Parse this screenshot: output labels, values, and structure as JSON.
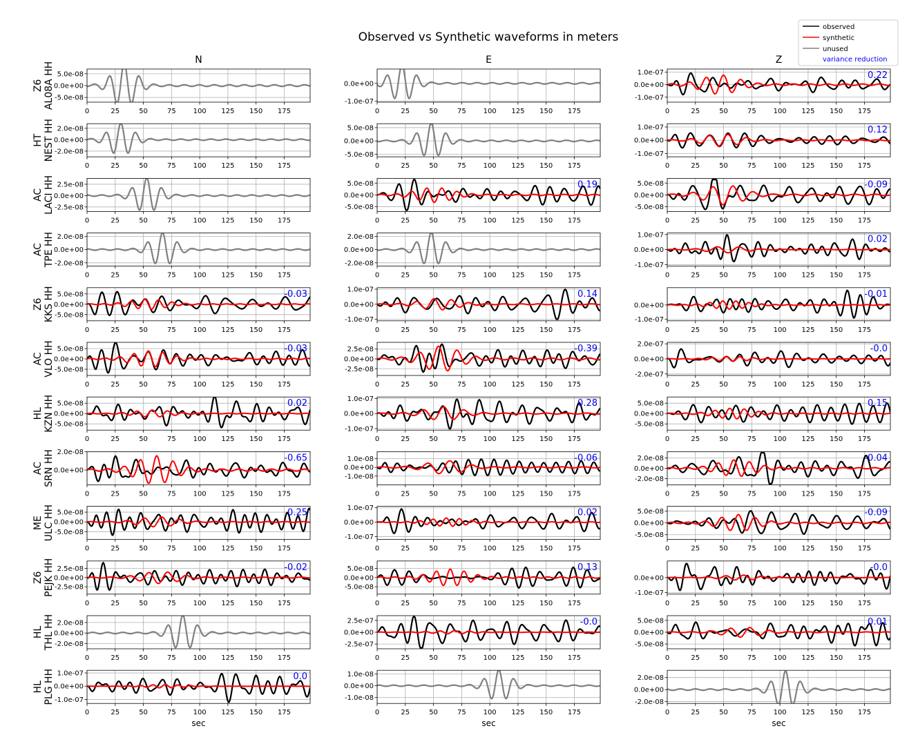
{
  "title": "Observed vs Synthetic waveforms in meters",
  "columns": [
    "N",
    "E",
    "Z"
  ],
  "legend": {
    "observed": "observed",
    "synthetic": "synthetic",
    "unused": "unused",
    "variance_reduction": "variance reduction"
  },
  "colors": {
    "observed": "#000000",
    "synthetic": "#ff0000",
    "unused": "#808080",
    "variance_reduction": "#0000ee",
    "grid": "#b0b0b0"
  },
  "xlabel": "sec",
  "chart_data": {
    "type": "line",
    "xlim": [
      0,
      198
    ],
    "x_ticks": [
      "0",
      "25",
      "50",
      "75",
      "100",
      "125",
      "150",
      "175"
    ],
    "rows": [
      {
        "label": "Z6\nAL08A HH",
        "channels": [
          {
            "used": false,
            "vr": null,
            "yticks": [
              "5.0e-08",
              "0.0e+00",
              "-5.0e-08"
            ],
            "ylim": [
              -7e-08,
              7e-08
            ],
            "amp": 9e-08,
            "peak": 33,
            "syn": 0
          },
          {
            "used": false,
            "vr": null,
            "yticks": [
              "0.0e+00",
              "-1.0e-07"
            ],
            "ylim": [
              -1.05e-07,
              8e-08
            ],
            "amp": 1e-07,
            "peak": 22,
            "syn": 0
          },
          {
            "used": true,
            "vr": "0.22",
            "yticks": [
              "1.0e-07",
              "0.0e+00",
              "-1.0e-07"
            ],
            "ylim": [
              -1.4e-07,
              1.25e-07
            ],
            "amp": 1.3e-07,
            "peak": 20,
            "syn": 0.55
          }
        ]
      },
      {
        "label": "HT\nNEST HH",
        "channels": [
          {
            "used": false,
            "vr": null,
            "yticks": [
              "2.0e-08",
              "0.0e+00",
              "-2.0e-08"
            ],
            "ylim": [
              -3e-08,
              2.8e-08
            ],
            "amp": 2.8e-08,
            "peak": 30,
            "syn": 0
          },
          {
            "used": false,
            "vr": null,
            "yticks": [
              "5.0e-08",
              "0.0e+00",
              "-5.0e-08"
            ],
            "ylim": [
              -6e-08,
              6.5e-08
            ],
            "amp": 6.5e-08,
            "peak": 48,
            "syn": 0
          },
          {
            "used": true,
            "vr": "0.12",
            "yticks": [
              "1.0e-07",
              "0.0e+00",
              "-1.0e-07"
            ],
            "ylim": [
              -1.25e-07,
              1.25e-07
            ],
            "amp": 1.2e-07,
            "peak": 22,
            "syn": 0.35
          }
        ]
      },
      {
        "label": "AC\nLACI HH",
        "channels": [
          {
            "used": false,
            "vr": null,
            "yticks": [
              "2.5e-08",
              "0.0e+00",
              "-2.5e-08"
            ],
            "ylim": [
              -3.5e-08,
              3.8e-08
            ],
            "amp": 3.8e-08,
            "peak": 53,
            "syn": 0
          },
          {
            "used": true,
            "vr": "0.19",
            "yticks": [
              "5.0e-08",
              "0.0e+00",
              "-5.0e-08"
            ],
            "ylim": [
              -7e-08,
              7e-08
            ],
            "amp": 6.5e-08,
            "peak": 45,
            "syn": 0.45
          },
          {
            "used": true,
            "vr": "-0.09",
            "yticks": [
              "5.0e-08",
              "0.0e+00",
              "-5.0e-08"
            ],
            "ylim": [
              -7e-08,
              7e-08
            ],
            "amp": 6.5e-08,
            "peak": 48,
            "syn": 0.6
          }
        ]
      },
      {
        "label": "AC\nTPE HH",
        "channels": [
          {
            "used": false,
            "vr": null,
            "yticks": [
              "2.0e-08",
              "0.0e+00",
              "-2.0e-08"
            ],
            "ylim": [
              -2.5e-08,
              2.5e-08
            ],
            "amp": 2.5e-08,
            "peak": 67,
            "syn": 0
          },
          {
            "used": false,
            "vr": null,
            "yticks": [
              "2.0e-08",
              "0.0e+00",
              "-2.0e-08"
            ],
            "ylim": [
              -2.5e-08,
              2.5e-08
            ],
            "amp": 2.5e-08,
            "peak": 48,
            "syn": 0
          },
          {
            "used": true,
            "vr": "0.02",
            "yticks": [
              "1.0e-07",
              "0.0e+00",
              "-1.0e-07"
            ],
            "ylim": [
              -1.1e-07,
              1.1e-07
            ],
            "amp": 1e-07,
            "peak": 40,
            "syn": 0.2
          }
        ]
      },
      {
        "label": "Z6\nKKS HH",
        "channels": [
          {
            "used": true,
            "vr": "-0.03",
            "yticks": [
              "5.0e-08",
              "0.0e+00",
              "-5.0e-08"
            ],
            "ylim": [
              -8e-08,
              8e-08
            ],
            "amp": 7.5e-08,
            "peak": 20,
            "syn": 0.3
          },
          {
            "used": true,
            "vr": "0.14",
            "yticks": [
              "1.0e-07",
              "0.0e+00",
              "-1.0e-07"
            ],
            "ylim": [
              -1.1e-07,
              1.1e-07
            ],
            "amp": 1e-07,
            "peak": 155,
            "syn": 0.35
          },
          {
            "used": true,
            "vr": "-0.01",
            "yticks": [
              "0.0e+00",
              "-1.0e-07"
            ],
            "ylim": [
              -1.1e-07,
              1.2e-07
            ],
            "amp": 1.1e-07,
            "peak": 175,
            "syn": 0.25
          }
        ]
      },
      {
        "label": "AC\nVLO HH",
        "channels": [
          {
            "used": true,
            "vr": "-0.03",
            "yticks": [
              "5.0e-08",
              "0.0e+00",
              "-5.0e-08"
            ],
            "ylim": [
              -8e-08,
              8e-08
            ],
            "amp": 8e-08,
            "peak": 22,
            "syn": 0.45
          },
          {
            "used": true,
            "vr": "-0.39",
            "yticks": [
              "2.5e-08",
              "0.0e+00",
              "-2.5e-08"
            ],
            "ylim": [
              -4.2e-08,
              4.2e-08
            ],
            "amp": 4e-08,
            "peak": 48,
            "syn": 0.75
          },
          {
            "used": true,
            "vr": "-0.0",
            "yticks": [
              "2.0e-07",
              "0.0e+00",
              "-2.0e-07"
            ],
            "ylim": [
              -2.2e-07,
              2.2e-07
            ],
            "amp": 2e-07,
            "peak": 18,
            "syn": 0.15
          }
        ]
      },
      {
        "label": "HL\nKZN HH",
        "channels": [
          {
            "used": true,
            "vr": "0.02",
            "yticks": [
              "5.0e-08",
              "0.0e+00",
              "-5.0e-08"
            ],
            "ylim": [
              -8e-08,
              8e-08
            ],
            "amp": 8e-08,
            "peak": 125,
            "syn": 0.2
          },
          {
            "used": true,
            "vr": "0.28",
            "yticks": [
              "1.0e-07",
              "0.0e+00",
              "-1.0e-07"
            ],
            "ylim": [
              -1.1e-07,
              1.1e-07
            ],
            "amp": 1.05e-07,
            "peak": 82,
            "syn": 0.4
          },
          {
            "used": true,
            "vr": "0.15",
            "yticks": [
              "5.0e-08",
              "0.0e+00",
              "-5.0e-08"
            ],
            "ylim": [
              -8e-08,
              8e-08
            ],
            "amp": 8e-08,
            "peak": 105,
            "syn": 0.3
          }
        ]
      },
      {
        "label": "AC\nSRN HH",
        "channels": [
          {
            "used": true,
            "vr": "-0.65",
            "yticks": [
              "2.0e-08",
              "0.0e+00"
            ],
            "ylim": [
              -1.6e-08,
              2e-08
            ],
            "amp": 1.8e-08,
            "peak": 20,
            "syn": 0.8
          },
          {
            "used": true,
            "vr": "-0.06",
            "yticks": [
              "1.0e-08",
              "0.0e+00",
              "-1.0e-08"
            ],
            "ylim": [
              -2e-08,
              1.8e-08
            ],
            "amp": 1.8e-08,
            "peak": 195,
            "syn": 0.4
          },
          {
            "used": true,
            "vr": "-0.04",
            "yticks": [
              "2.0e-08",
              "0.0e+00",
              "-2.0e-08"
            ],
            "ylim": [
              -3.2e-08,
              3.2e-08
            ],
            "amp": 3e-08,
            "peak": 85,
            "syn": 0.5
          }
        ]
      },
      {
        "label": "ME\nULC HH",
        "channels": [
          {
            "used": true,
            "vr": "0.25",
            "yticks": [
              "5.0e-08",
              "0.0e+00",
              "-5.0e-08"
            ],
            "ylim": [
              -9e-08,
              8e-08
            ],
            "amp": 8e-08,
            "peak": 75,
            "syn": 0.3
          },
          {
            "used": true,
            "vr": "0.02",
            "yticks": [
              "1.0e-07",
              "0.0e+00",
              "-1.0e-07"
            ],
            "ylim": [
              -1.2e-07,
              1.1e-07
            ],
            "amp": 1.1e-07,
            "peak": 25,
            "syn": 0.25
          },
          {
            "used": true,
            "vr": "-0.09",
            "yticks": [
              "5.0e-08",
              "0.0e+00",
              "-5.0e-08"
            ],
            "ylim": [
              -7e-08,
              7e-08
            ],
            "amp": 6.5e-08,
            "peak": 80,
            "syn": 0.5
          }
        ]
      },
      {
        "label": "Z6\nPEJK HH",
        "channels": [
          {
            "used": true,
            "vr": "-0.02",
            "yticks": [
              "2.5e-08",
              "0.0e+00",
              "-2.5e-08"
            ],
            "ylim": [
              -4.5e-08,
              4.5e-08
            ],
            "amp": 4.3e-08,
            "peak": 30,
            "syn": 0.35
          },
          {
            "used": true,
            "vr": "0.13",
            "yticks": [
              "5.0e-08",
              "0.0e+00",
              "-5.0e-08"
            ],
            "ylim": [
              -9e-08,
              9e-08
            ],
            "amp": 8.5e-08,
            "peak": 195,
            "syn": 0.5
          },
          {
            "used": true,
            "vr": "-0.0",
            "yticks": [
              "0.0e+00",
              "-1.0e-07"
            ],
            "ylim": [
              -1.1e-07,
              1.1e-07
            ],
            "amp": 1e-07,
            "peak": 22,
            "syn": 0.15
          }
        ]
      },
      {
        "label": "HL\nTHL HH",
        "channels": [
          {
            "used": false,
            "vr": null,
            "yticks": [
              "2.0e-08",
              "0.0e+00",
              "-2.0e-08"
            ],
            "ylim": [
              -3e-08,
              3.3e-08
            ],
            "amp": 3.3e-08,
            "peak": 85,
            "syn": 0
          },
          {
            "used": true,
            "vr": "-0.0",
            "yticks": [
              "2.5e-07",
              "0.0e+00",
              "-2.5e-07"
            ],
            "ylim": [
              -3.5e-07,
              3.5e-07
            ],
            "amp": 3.3e-07,
            "peak": 25,
            "syn": 0.1
          },
          {
            "used": true,
            "vr": "0.01",
            "yticks": [
              "5.0e-08",
              "0.0e+00",
              "-5.0e-08"
            ],
            "ylim": [
              -7e-08,
              7e-08
            ],
            "amp": 6.5e-08,
            "peak": 180,
            "syn": 0.3
          }
        ]
      },
      {
        "label": "HL\nPLG HH",
        "channels": [
          {
            "used": true,
            "vr": "0.0",
            "yticks": [
              "1.0e-07",
              "0.0e+00",
              "-1.0e-07"
            ],
            "ylim": [
              -1.3e-07,
              1.2e-07
            ],
            "amp": 1.2e-07,
            "peak": 140,
            "syn": 0.1
          },
          {
            "used": false,
            "vr": null,
            "yticks": [
              "1.0e-08",
              "0.0e+00",
              "-1.0e-08"
            ],
            "ylim": [
              -1.5e-08,
              1.3e-08
            ],
            "amp": 1.3e-08,
            "peak": 108,
            "syn": 0
          },
          {
            "used": false,
            "vr": null,
            "yticks": [
              "2.0e-08",
              "0.0e+00",
              "-2.0e-08"
            ],
            "ylim": [
              -2.3e-08,
              3.2e-08
            ],
            "amp": 3e-08,
            "peak": 105,
            "syn": 0
          }
        ]
      }
    ]
  }
}
